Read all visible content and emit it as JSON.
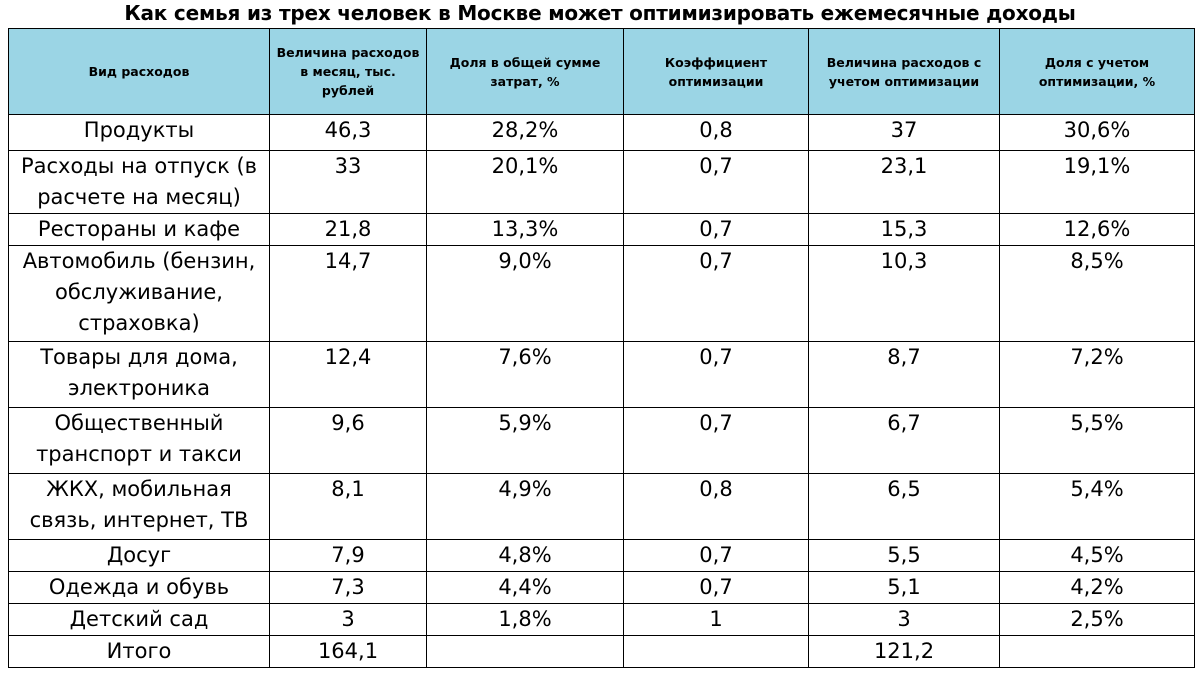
{
  "title": "Как семья из трех человек в Москве может оптимизировать ежемесячные доходы",
  "colors": {
    "header_bg": "#9bd5e5",
    "border": "#000000"
  },
  "headers": [
    "Вид расходов",
    "Величина расходов в месяц, тыс. рублей",
    "Доля в общей сумме затрат, %",
    "Коэффициент оптимизации",
    "Величина расходов с учетом оптимизации",
    "Доля с учетом оптимизации, %"
  ],
  "rows": [
    {
      "category": "Продукты",
      "amount": "46,3",
      "share": "28,2%",
      "coef": "0,8",
      "optimized": "37",
      "optimized_share": "30,6%"
    },
    {
      "category": "Расходы на отпуск (в расчете на месяц)",
      "amount": "33",
      "share": "20,1%",
      "coef": "0,7",
      "optimized": "23,1",
      "optimized_share": "19,1%"
    },
    {
      "category": "Рестораны и кафе",
      "amount": "21,8",
      "share": "13,3%",
      "coef": "0,7",
      "optimized": "15,3",
      "optimized_share": "12,6%"
    },
    {
      "category": "Автомобиль (бензин, обслуживание, страховка)",
      "amount": "14,7",
      "share": "9,0%",
      "coef": "0,7",
      "optimized": "10,3",
      "optimized_share": "8,5%"
    },
    {
      "category": "Товары для дома, электроника",
      "amount": "12,4",
      "share": "7,6%",
      "coef": "0,7",
      "optimized": "8,7",
      "optimized_share": "7,2%"
    },
    {
      "category": "Общественный транспорт и такси",
      "amount": "9,6",
      "share": "5,9%",
      "coef": "0,7",
      "optimized": "6,7",
      "optimized_share": "5,5%"
    },
    {
      "category": "ЖКХ, мобильная связь, интернет, ТВ",
      "amount": "8,1",
      "share": "4,9%",
      "coef": "0,8",
      "optimized": "6,5",
      "optimized_share": "5,4%"
    },
    {
      "category": "Досуг",
      "amount": "7,9",
      "share": "4,8%",
      "coef": "0,7",
      "optimized": "5,5",
      "optimized_share": "4,5%"
    },
    {
      "category": "Одежда и обувь",
      "amount": "7,3",
      "share": "4,4%",
      "coef": "0,7",
      "optimized": "5,1",
      "optimized_share": "4,2%"
    },
    {
      "category": "Детский сад",
      "amount": "3",
      "share": "1,8%",
      "coef": "1",
      "optimized": "3",
      "optimized_share": "2,5%"
    }
  ],
  "total": {
    "label": "Итого",
    "amount": "164,1",
    "share": "",
    "coef": "",
    "optimized": "121,2",
    "optimized_share": ""
  }
}
